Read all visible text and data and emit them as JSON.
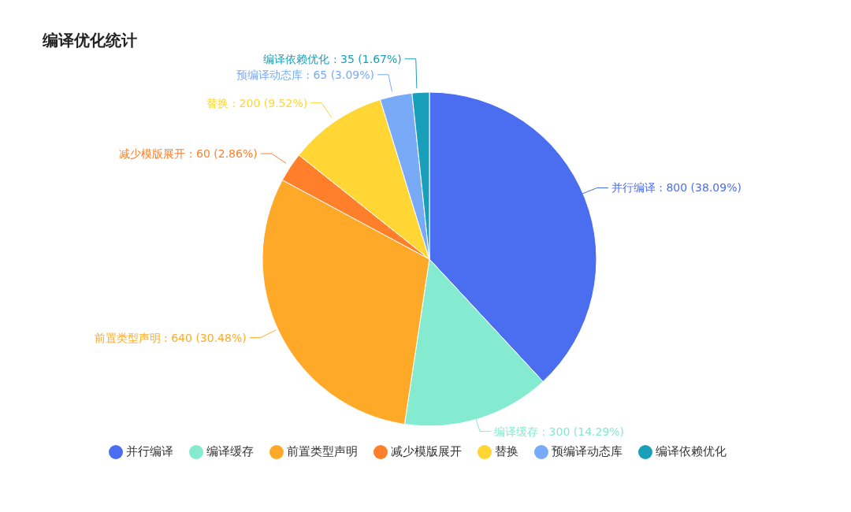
{
  "chart_data": {
    "type": "pie",
    "title": "编译优化统计",
    "categories": [
      "并行编译",
      "编译缓存",
      "前置类型声明",
      "减少模版展开",
      "替换",
      "预编译动态库",
      "编译依赖优化"
    ],
    "values": [
      800,
      300,
      640,
      60,
      200,
      65,
      35
    ],
    "colors": [
      "#4b6ef0",
      "#84ebd0",
      "#ffa928",
      "#ff7f2a",
      "#ffd633",
      "#79aaf7",
      "#1a9fbb"
    ],
    "value_labels": [
      ": 800 (38.09%)",
      ": 300 (14.29%)",
      ": 640 (30.48%)",
      ": 60 (2.86%)",
      ": 200 (9.52%)",
      ": 65 (3.09%)",
      ": 35 (1.67%)"
    ],
    "legend": "bottom"
  }
}
